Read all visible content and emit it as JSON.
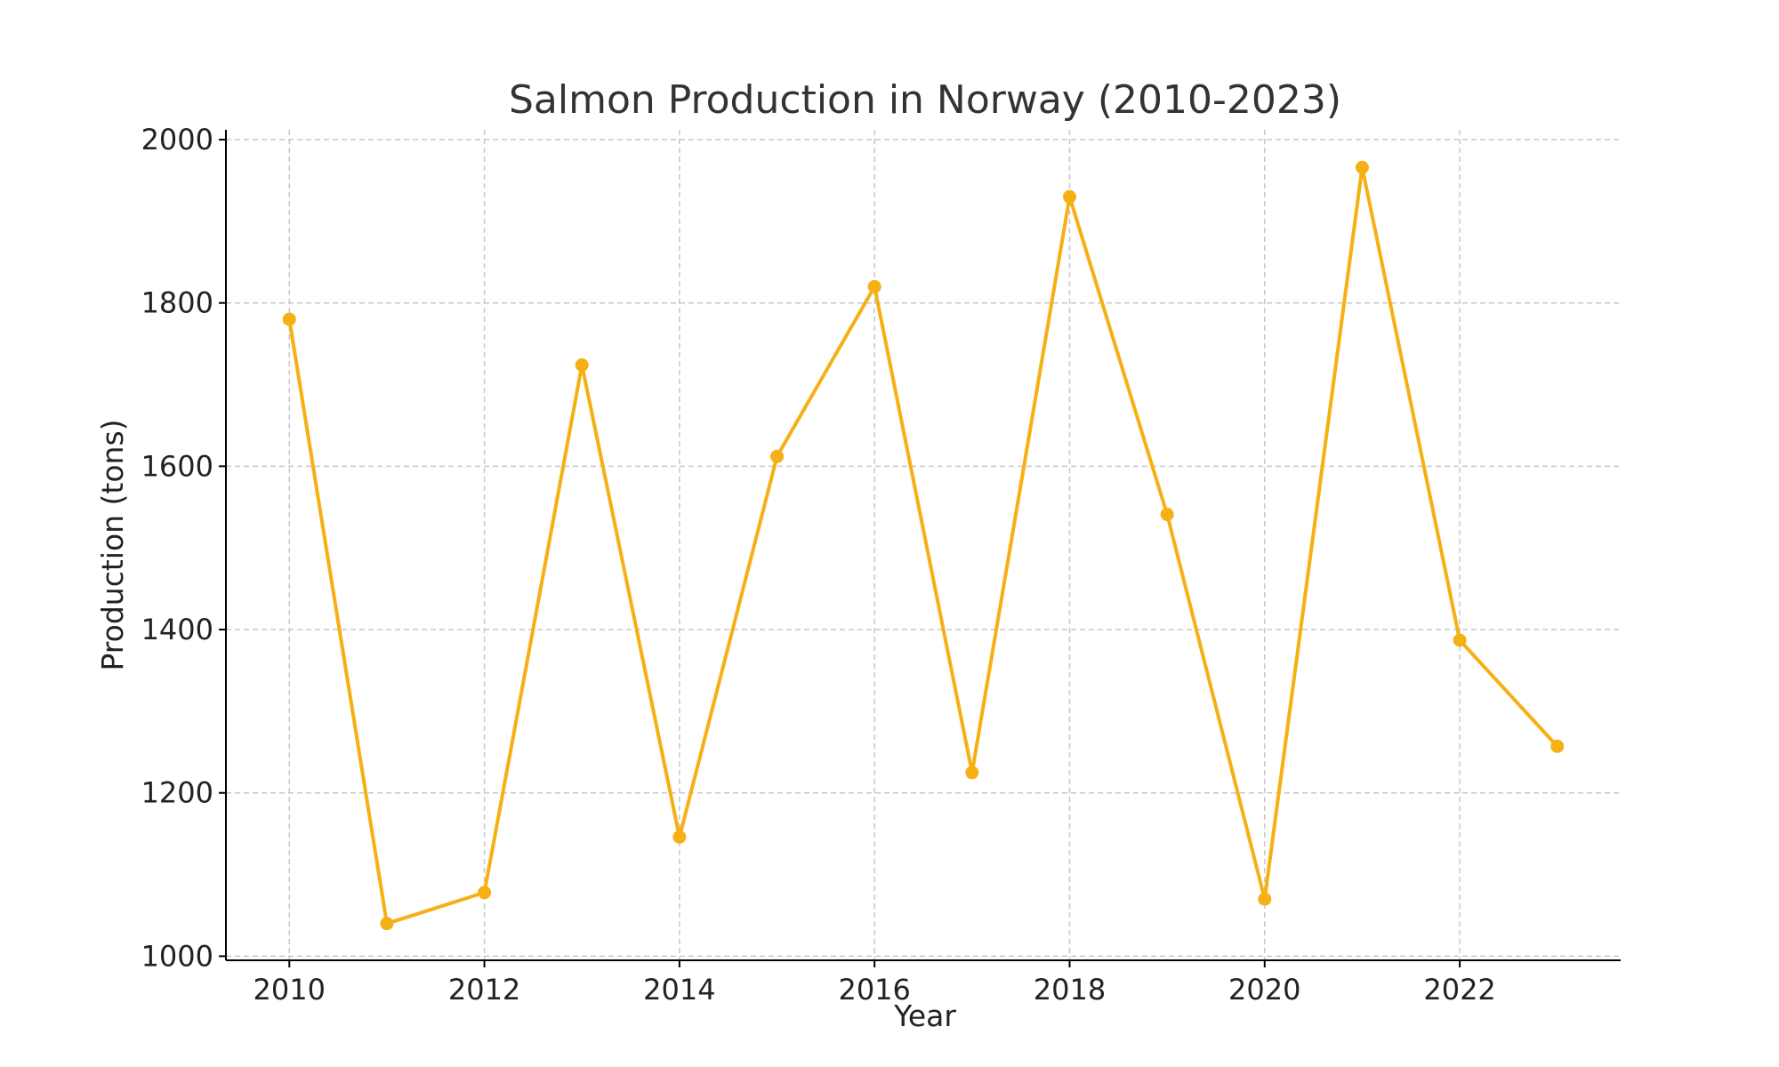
{
  "chart_data": {
    "type": "line",
    "title": "Salmon Production in Norway (2010-2023)",
    "xlabel": "Year",
    "ylabel": "Production (tons)",
    "x": [
      2010,
      2011,
      2012,
      2013,
      2014,
      2015,
      2016,
      2017,
      2018,
      2019,
      2020,
      2021,
      2022,
      2023
    ],
    "series": [
      {
        "values": [
          1780,
          1040,
          1078,
          1724,
          1146,
          1612,
          1820,
          1225,
          1930,
          1541,
          1070,
          1966,
          1387,
          1257
        ],
        "color": "#f5b014",
        "marker": "circle"
      }
    ],
    "xlim": [
      2009.35,
      2023.65
    ],
    "ylim": [
      995,
      2012
    ],
    "xticks": [
      2010,
      2012,
      2014,
      2016,
      2018,
      2020,
      2022
    ],
    "yticks": [
      1000,
      1200,
      1400,
      1600,
      1800,
      2000
    ],
    "grid": true,
    "grid_style": "dashed",
    "legend": "none",
    "colors": {
      "line": "#f5b014",
      "grid": "#c8c8c8",
      "axis": "#000000",
      "text": "#222222"
    }
  }
}
